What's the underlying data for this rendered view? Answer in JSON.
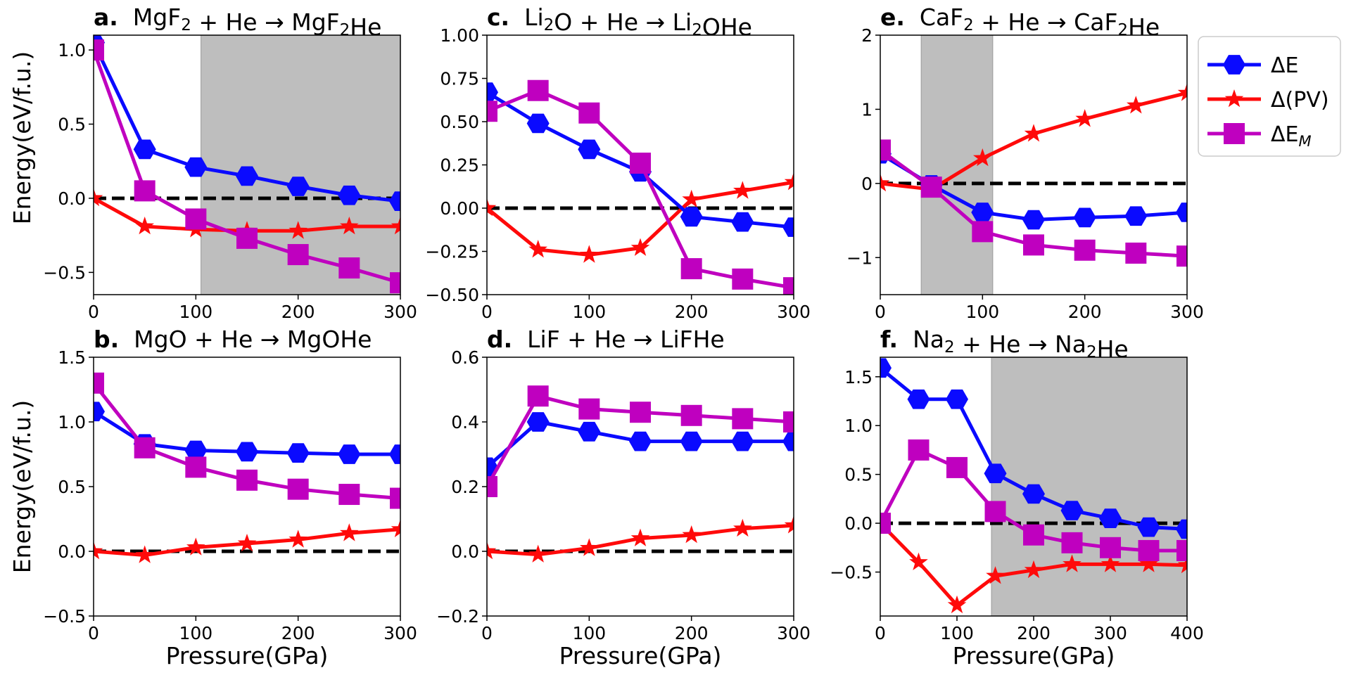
{
  "shared": {
    "ylabel": "Energy(eV/f.u.)",
    "xlabel": "Pressure(GPa)"
  },
  "legend": [
    {
      "key": "dE",
      "label": "ΔE",
      "color": "#0a0aff",
      "marker": "hexagon"
    },
    {
      "key": "dPV",
      "label": "Δ(PV)",
      "color": "#ff0a0a",
      "marker": "star"
    },
    {
      "key": "dEM",
      "label": "ΔE_M",
      "color": "#bf00bf",
      "marker": "square"
    }
  ],
  "chart_data": [
    {
      "type": "line",
      "id": "a",
      "panel_letter": "a.",
      "title_text": "MgF2 + He → MgF2He",
      "xlim": [
        0,
        300
      ],
      "ylim": [
        -0.65,
        1.1
      ],
      "xticks": [
        0,
        100,
        200,
        300
      ],
      "yticks": [
        -0.5,
        0.0,
        0.5,
        1.0
      ],
      "ytick_labels": [
        "−0.5",
        "0.0",
        "0.5",
        "1.0"
      ],
      "shaded_x": [
        105,
        300
      ],
      "x": [
        0,
        50,
        100,
        150,
        200,
        250,
        300
      ],
      "series": [
        {
          "key": "dE",
          "values": [
            1.05,
            0.33,
            0.21,
            0.15,
            0.08,
            0.02,
            -0.02
          ]
        },
        {
          "key": "dPV",
          "values": [
            0.0,
            -0.19,
            -0.21,
            -0.22,
            -0.22,
            -0.19,
            -0.19
          ]
        },
        {
          "key": "dEM",
          "values": [
            1.0,
            0.05,
            -0.14,
            -0.27,
            -0.38,
            -0.47,
            -0.57
          ]
        }
      ]
    },
    {
      "type": "line",
      "id": "c",
      "panel_letter": "c.",
      "title_text": "Li2O + He → Li2OHe",
      "xlim": [
        0,
        300
      ],
      "ylim": [
        -0.5,
        1.0
      ],
      "xticks": [
        0,
        100,
        200,
        300
      ],
      "yticks": [
        -0.5,
        -0.25,
        0.0,
        0.25,
        0.5,
        0.75,
        1.0
      ],
      "ytick_labels": [
        "−0.50",
        "−0.25",
        "0.00",
        "0.25",
        "0.50",
        "0.75",
        "1.00"
      ],
      "shaded_x": null,
      "x": [
        0,
        50,
        100,
        150,
        200,
        250,
        300
      ],
      "series": [
        {
          "key": "dE",
          "values": [
            0.67,
            0.49,
            0.34,
            0.21,
            -0.05,
            -0.08,
            -0.11
          ]
        },
        {
          "key": "dPV",
          "values": [
            0.0,
            -0.24,
            -0.27,
            -0.23,
            0.05,
            0.1,
            0.15
          ]
        },
        {
          "key": "dEM",
          "values": [
            0.56,
            0.68,
            0.55,
            0.26,
            -0.35,
            -0.41,
            -0.46
          ]
        }
      ]
    },
    {
      "type": "line",
      "id": "e",
      "panel_letter": "e.",
      "title_text": "CaF2 + He → CaF2He",
      "xlim": [
        0,
        300
      ],
      "ylim": [
        -1.5,
        2.0
      ],
      "xticks": [
        0,
        100,
        200,
        300
      ],
      "yticks": [
        -1,
        0,
        1,
        2
      ],
      "ytick_labels": [
        "−1",
        "0",
        "1",
        "2"
      ],
      "shaded_x": [
        40,
        110
      ],
      "x": [
        0,
        50,
        100,
        150,
        200,
        250,
        300
      ],
      "series": [
        {
          "key": "dE",
          "values": [
            0.4,
            -0.02,
            -0.39,
            -0.49,
            -0.46,
            -0.44,
            -0.39
          ]
        },
        {
          "key": "dPV",
          "values": [
            0.0,
            -0.08,
            0.34,
            0.67,
            0.87,
            1.05,
            1.22
          ]
        },
        {
          "key": "dEM",
          "values": [
            0.45,
            -0.05,
            -0.65,
            -0.83,
            -0.9,
            -0.94,
            -0.98
          ]
        }
      ]
    },
    {
      "type": "line",
      "id": "b",
      "panel_letter": "b.",
      "title_text": "MgO + He → MgOHe",
      "xlim": [
        0,
        300
      ],
      "ylim": [
        -0.5,
        1.5
      ],
      "xticks": [
        0,
        100,
        200,
        300
      ],
      "yticks": [
        -0.5,
        0.0,
        0.5,
        1.0,
        1.5
      ],
      "ytick_labels": [
        "−0.5",
        "0.0",
        "0.5",
        "1.0",
        "1.5"
      ],
      "shaded_x": null,
      "x": [
        0,
        50,
        100,
        150,
        200,
        250,
        300
      ],
      "series": [
        {
          "key": "dE",
          "values": [
            1.08,
            0.83,
            0.78,
            0.77,
            0.76,
            0.75,
            0.75
          ]
        },
        {
          "key": "dPV",
          "values": [
            0.0,
            -0.03,
            0.03,
            0.06,
            0.09,
            0.14,
            0.17
          ]
        },
        {
          "key": "dEM",
          "values": [
            1.3,
            0.8,
            0.65,
            0.55,
            0.48,
            0.44,
            0.41
          ]
        }
      ]
    },
    {
      "type": "line",
      "id": "d",
      "panel_letter": "d.",
      "title_text": "LiF + He → LiFHe",
      "xlim": [
        0,
        300
      ],
      "ylim": [
        -0.2,
        0.6
      ],
      "xticks": [
        0,
        100,
        200,
        300
      ],
      "yticks": [
        -0.2,
        0.0,
        0.2,
        0.4,
        0.6
      ],
      "ytick_labels": [
        "−0.2",
        "0.0",
        "0.2",
        "0.4",
        "0.6"
      ],
      "shaded_x": null,
      "x": [
        0,
        50,
        100,
        150,
        200,
        250,
        300
      ],
      "series": [
        {
          "key": "dE",
          "values": [
            0.26,
            0.4,
            0.37,
            0.34,
            0.34,
            0.34,
            0.34
          ]
        },
        {
          "key": "dPV",
          "values": [
            0.0,
            -0.01,
            0.01,
            0.04,
            0.05,
            0.07,
            0.08
          ]
        },
        {
          "key": "dEM",
          "values": [
            0.2,
            0.48,
            0.44,
            0.43,
            0.42,
            0.41,
            0.4
          ]
        }
      ]
    },
    {
      "type": "line",
      "id": "f",
      "panel_letter": "f.",
      "title_text": "Na2 + He → Na2He",
      "xlim": [
        0,
        400
      ],
      "ylim": [
        -0.95,
        1.7
      ],
      "xticks": [
        0,
        100,
        200,
        300,
        400
      ],
      "yticks": [
        -0.5,
        0.0,
        0.5,
        1.0,
        1.5
      ],
      "ytick_labels": [
        "−0.5",
        "0.0",
        "0.5",
        "1.0",
        "1.5"
      ],
      "shaded_x": [
        145,
        400
      ],
      "x": [
        0,
        50,
        100,
        150,
        200,
        250,
        300,
        350,
        400
      ],
      "series": [
        {
          "key": "dE",
          "values": [
            1.59,
            1.27,
            1.27,
            0.51,
            0.3,
            0.13,
            0.05,
            -0.04,
            -0.06
          ]
        },
        {
          "key": "dPV",
          "values": [
            0.0,
            -0.4,
            -0.84,
            -0.54,
            -0.48,
            -0.42,
            -0.42,
            -0.42,
            -0.43
          ]
        },
        {
          "key": "dEM",
          "values": [
            0.0,
            0.75,
            0.57,
            0.12,
            -0.12,
            -0.2,
            -0.25,
            -0.28,
            -0.28
          ]
        }
      ]
    }
  ]
}
